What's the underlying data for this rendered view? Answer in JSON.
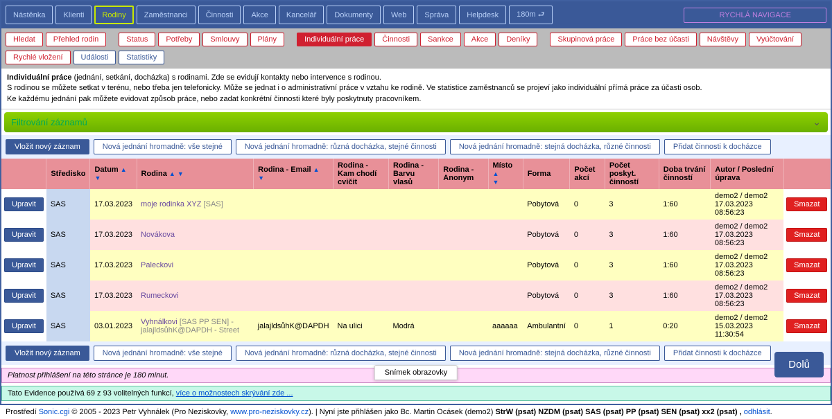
{
  "topnav": {
    "items": [
      {
        "label": "Nástěnka",
        "active": false
      },
      {
        "label": "Klienti",
        "active": false
      },
      {
        "label": "Rodiny",
        "active": true
      },
      {
        "label": "Zaměstnanci",
        "active": false
      },
      {
        "label": "Činnosti",
        "active": false
      },
      {
        "label": "Akce",
        "active": false
      },
      {
        "label": "Kancelář",
        "active": false
      },
      {
        "label": "Dokumenty",
        "active": false
      },
      {
        "label": "Web",
        "active": false
      },
      {
        "label": "Správa",
        "active": false
      },
      {
        "label": "Helpdesk",
        "active": false
      },
      {
        "label": "180m ⮐",
        "active": false
      }
    ],
    "rychla": "RYCHLÁ NAVIGACE"
  },
  "subnav": {
    "g1": [
      "Hledat",
      "Přehled rodin"
    ],
    "g2": [
      "Status",
      "Potřeby",
      "Smlouvy",
      "Plány"
    ],
    "g3": [
      "Individuální práce",
      "Činnosti",
      "Sankce",
      "Akce",
      "Deníky"
    ],
    "g4": [
      "Skupinová práce",
      "Práce bez účasti",
      "Návštěvy",
      "Vyúčtování"
    ],
    "g5": [
      "Rychlé vložení",
      "Události",
      "Statistiky"
    ],
    "active": "Individuální práce"
  },
  "desc": {
    "line1a": "Individuální práce",
    "line1b": " (jednání, setkání, docházka) s rodinami. Zde se evidují kontakty nebo intervence s rodinou.",
    "line2": "S rodinou se můžete setkat v terénu, nebo třeba jen telefonicky. Může se jednat i o administrativní práce v vztahu ke rodině. Ve statistice zaměstnanců se projeví jako individuální přímá práce za účasti osob.",
    "line3": "Ke každému jednání pak můžete evidovat způsob práce, nebo zadat konkrétní činnosti které byly poskytnuty pracovníkem."
  },
  "filter": {
    "title": "Filtrování záznamů"
  },
  "actions": {
    "primary": "Vložit nový záznam",
    "items": [
      "Nová jednání hromadně: vše stejné",
      "Nová jednání hromadně: různá docházka, stejné činnosti",
      "Nová jednání hromadně: stejná docházka, různé činnosti",
      "Přidat činnosti k docházce"
    ]
  },
  "table": {
    "edit_label": "Upravit",
    "del_label": "Smazat",
    "columns": [
      "",
      "Středisko",
      "Datum",
      "Rodina",
      "Rodina - Email",
      "Rodina - Kam chodí cvičit",
      "Rodina - Barvu vlasů",
      "Rodina - Anonym",
      "Místo",
      "Forma",
      "Počet akcí",
      "Počet poskyt. činností",
      "Doba trvání činností",
      "Autor / Poslední úprava",
      ""
    ],
    "rows": [
      {
        "cls": "row-yellow",
        "stred": "SAS",
        "datum": "17.03.2023",
        "rodina": "moje rodinka XYZ",
        "rodina_sub": "[SAS]",
        "email": "",
        "kam": "",
        "barva": "",
        "anonym": "",
        "misto": "",
        "forma": "Pobytová",
        "akci": "0",
        "cinn": "3",
        "doba": "1:60",
        "autor": "demo2 / demo2 17.03.2023 08:56:23"
      },
      {
        "cls": "row-pink",
        "stred": "SAS",
        "datum": "17.03.2023",
        "rodina": "Novákova",
        "rodina_sub": "",
        "email": "",
        "kam": "",
        "barva": "",
        "anonym": "",
        "misto": "",
        "forma": "Pobytová",
        "akci": "0",
        "cinn": "3",
        "doba": "1:60",
        "autor": "demo2 / demo2 17.03.2023 08:56:23"
      },
      {
        "cls": "row-yellow",
        "stred": "SAS",
        "datum": "17.03.2023",
        "rodina": "Paleckovi",
        "rodina_sub": "",
        "email": "",
        "kam": "",
        "barva": "",
        "anonym": "",
        "misto": "",
        "forma": "Pobytová",
        "akci": "0",
        "cinn": "3",
        "doba": "1:60",
        "autor": "demo2 / demo2 17.03.2023 08:56:23"
      },
      {
        "cls": "row-pink",
        "stred": "SAS",
        "datum": "17.03.2023",
        "rodina": "Rumeckovi",
        "rodina_sub": "",
        "email": "",
        "kam": "",
        "barva": "",
        "anonym": "",
        "misto": "",
        "forma": "Pobytová",
        "akci": "0",
        "cinn": "3",
        "doba": "1:60",
        "autor": "demo2 / demo2 17.03.2023 08:56:23"
      },
      {
        "cls": "row-yellow",
        "stred": "SAS",
        "datum": "03.01.2023",
        "rodina": "Vyhnálkovi",
        "rodina_sub": "[SAS PP SEN] - jalajldsůhK@DAPDH - Street",
        "email": "jalajldsůhK@DAPDH",
        "kam": "Na ulici",
        "barva": "Modrá",
        "anonym": "",
        "misto": "aaaaaa",
        "forma": "Ambulantní",
        "akci": "0",
        "cinn": "1",
        "doba": "0:20",
        "autor": "demo2 / demo2 15.03.2023 11:30:54"
      }
    ]
  },
  "validity": "Platnost přihlášení na této stránce je 180 minut.",
  "funcs": {
    "text": "Tato Evidence používá 69 z 93 volitelných funkcí, ",
    "link": "více o možnostech skrývání zde ..."
  },
  "footer": {
    "p1": "Prostředí ",
    "sonic": "Sonic.cgi",
    "p2": " © 2005 - 2023 Petr Vyhnálek (Pro Neziskovky, ",
    "url": "www.pro-neziskovky.cz",
    "p3": "). | Nyní jste přihlášen jako Bc. Martin Ocásek (demo2) ",
    "roles": "StrW (psat) NZDM (psat) SAS (psat) PP (psat) SEN (psat) xx2 (psat) , ",
    "logout": "odhlásit",
    "p4": "."
  },
  "dolu": "Dolů",
  "snap": "Snímek obrazovky"
}
